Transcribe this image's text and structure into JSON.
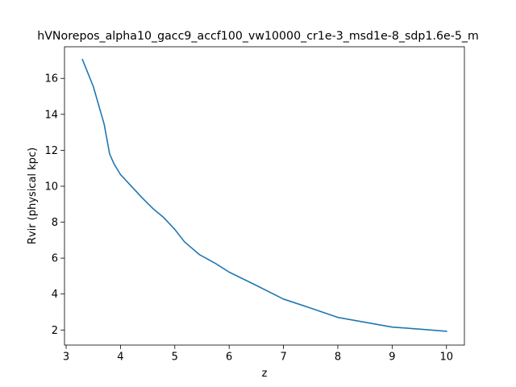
{
  "chart_data": {
    "type": "line",
    "title": "hVNorepos_alpha10_gacc9_accf100_vw10000_cr1e-3_msd1e-8_sdp1.6e-5_m",
    "xlabel": "z",
    "ylabel": "Rvir (physical kpc)",
    "xlim": [
      2.97,
      10.33
    ],
    "ylim": [
      1.16,
      17.76
    ],
    "xticks": [
      3,
      4,
      5,
      6,
      7,
      8,
      9,
      10
    ],
    "yticks": [
      2,
      4,
      6,
      8,
      10,
      12,
      14,
      16
    ],
    "grid": false,
    "series": [
      {
        "color": "#1f77b4",
        "x": [
          3.3,
          3.5,
          3.7,
          3.8,
          3.88,
          4.0,
          4.2,
          4.4,
          4.6,
          4.78,
          5.0,
          5.18,
          5.45,
          5.75,
          6.0,
          6.5,
          7.0,
          7.5,
          8.0,
          8.5,
          9.0,
          9.5,
          10.0
        ],
        "y": [
          17.05,
          15.55,
          13.45,
          11.8,
          11.25,
          10.65,
          10.0,
          9.35,
          8.75,
          8.3,
          7.6,
          6.9,
          6.2,
          5.7,
          5.22,
          4.48,
          3.72,
          3.22,
          2.7,
          2.43,
          2.16,
          2.05,
          1.93
        ]
      }
    ]
  }
}
